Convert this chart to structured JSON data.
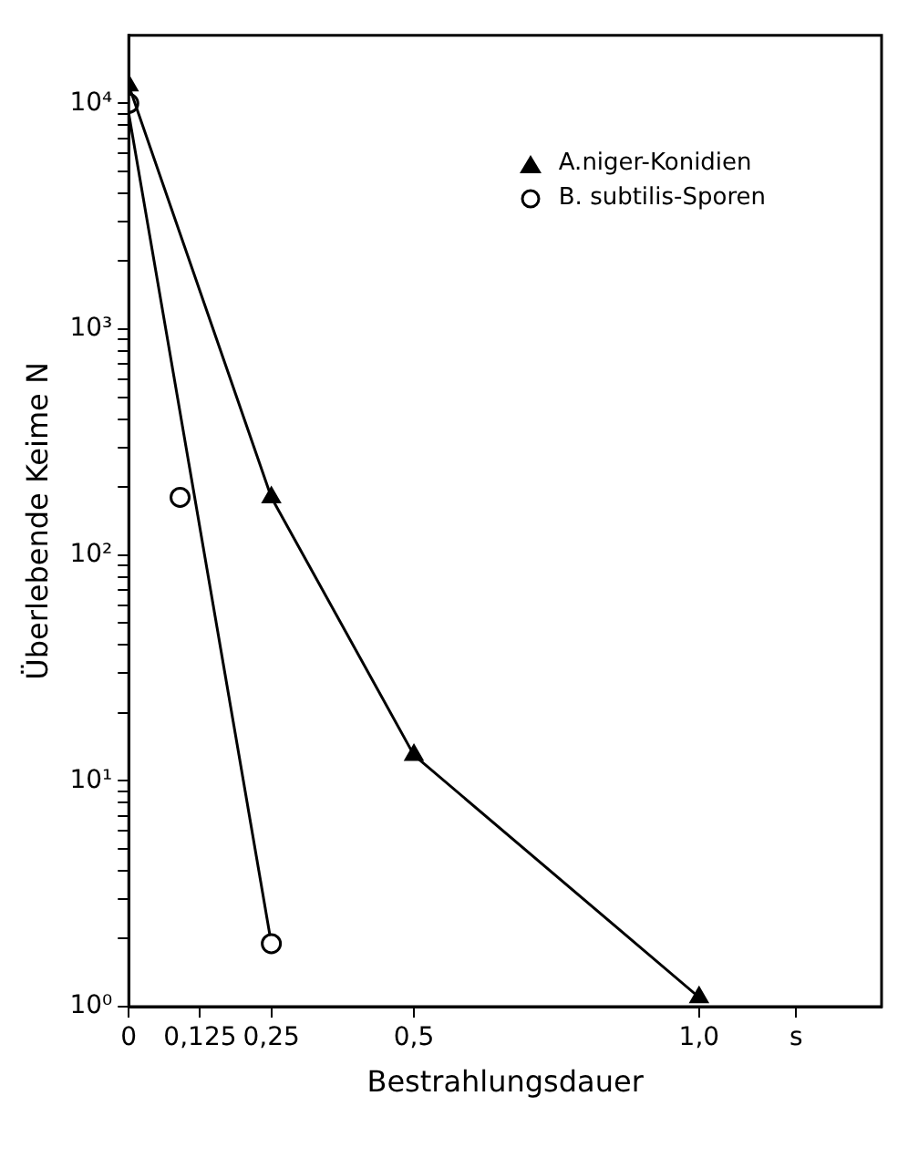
{
  "chart_data": {
    "type": "line",
    "xlabel": "Bestrahlungsdauer",
    "ylabel": "Überlebende Keime N",
    "log": "y",
    "grid": false,
    "legend": "top right",
    "xlim": [
      0,
      1.32
    ],
    "xticks": [
      0,
      {
        "value": 0.125,
        "label": "0,125"
      },
      {
        "value": 0.25,
        "label": "0,25"
      },
      {
        "value": 0.5,
        "label": "0,5"
      },
      {
        "value": 1.0,
        "label": "1,0"
      },
      {
        "value": 1.17,
        "label": "s"
      }
    ],
    "ylim": [
      1,
      20000
    ],
    "yticks": [
      {
        "value": 1,
        "label": "10⁰"
      },
      {
        "value": 2,
        "label": null
      },
      {
        "value": 3,
        "label": null
      },
      {
        "value": 4,
        "label": null
      },
      {
        "value": 5,
        "label": null
      },
      {
        "value": 6,
        "label": null
      },
      {
        "value": 7,
        "label": null
      },
      {
        "value": 8,
        "label": null
      },
      {
        "value": 9,
        "label": null
      },
      {
        "value": 10,
        "label": "10¹"
      },
      {
        "value": 20,
        "label": null
      },
      {
        "value": 30,
        "label": null
      },
      {
        "value": 40,
        "label": null
      },
      {
        "value": 50,
        "label": null
      },
      {
        "value": 60,
        "label": null
      },
      {
        "value": 70,
        "label": null
      },
      {
        "value": 80,
        "label": null
      },
      {
        "value": 90,
        "label": null
      },
      {
        "value": 100,
        "label": "10²"
      },
      {
        "value": 200,
        "label": null
      },
      {
        "value": 300,
        "label": null
      },
      {
        "value": 400,
        "label": null
      },
      {
        "value": 500,
        "label": null
      },
      {
        "value": 600,
        "label": null
      },
      {
        "value": 700,
        "label": null
      },
      {
        "value": 800,
        "label": null
      },
      {
        "value": 900,
        "label": null
      },
      {
        "value": 1000,
        "label": "10³"
      },
      {
        "value": 2000,
        "label": null
      },
      {
        "value": 3000,
        "label": null
      },
      {
        "value": 4000,
        "label": null
      },
      {
        "value": 5000,
        "label": null
      },
      {
        "value": 6000,
        "label": null
      },
      {
        "value": 7000,
        "label": null
      },
      {
        "value": 8000,
        "label": null
      },
      {
        "value": 9000,
        "label": null
      },
      {
        "value": 10000,
        "label": "10⁴"
      }
    ],
    "series": [
      {
        "name": "A.niger-Konidien",
        "type": "line",
        "marker": "triangle",
        "color": "#000000",
        "x": [
          0,
          0.25,
          0.5,
          1.0
        ],
        "values": [
          12000,
          180,
          13,
          1.1
        ]
      },
      {
        "name": "B. subtilis-Sporen",
        "type": "scatter",
        "marker": "circle",
        "color": "#000000",
        "x": [
          0,
          0.09,
          0.25
        ],
        "values": [
          10000,
          180,
          1.9
        ]
      },
      {
        "type": "line",
        "marker": "none",
        "color": "#000000",
        "x": [
          0,
          0.25
        ],
        "values": [
          9000,
          1.9
        ]
      }
    ]
  }
}
